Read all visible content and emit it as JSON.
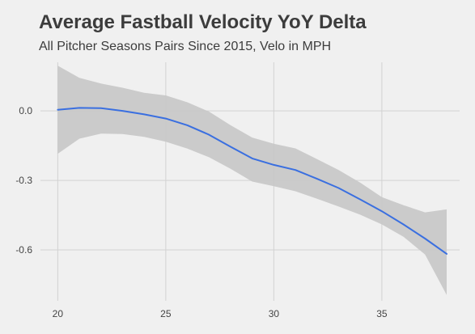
{
  "title": "Average Fastball Velocity YoY Delta",
  "subtitle": "All Pitcher Seasons Pairs Since 2015, Velo in MPH",
  "colors": {
    "background": "#f0f0f0",
    "grid": "#d2d2d2",
    "band": "#c8c8c8",
    "line": "#3a6fe0",
    "text": "#444444"
  },
  "chart_data": {
    "type": "line",
    "title": "Average Fastball Velocity YoY Delta",
    "subtitle": "All Pitcher Seasons Pairs Since 2015, Velo in MPH",
    "xlabel": "",
    "ylabel": "",
    "xlim": [
      19.2,
      38.6
    ],
    "ylim": [
      -0.82,
      0.21
    ],
    "x_ticks": [
      20,
      25,
      30,
      35
    ],
    "x_tick_labels": [
      "20",
      "25",
      "30",
      "35"
    ],
    "y_ticks": [
      0.0,
      -0.3,
      -0.6
    ],
    "y_tick_labels": [
      "0.0",
      "-0.3",
      "-0.6"
    ],
    "grid": true,
    "legend": "none",
    "series": [
      {
        "type": "line",
        "x": [
          20,
          21,
          22,
          23,
          24,
          25,
          26,
          27,
          28,
          29,
          30,
          31,
          32,
          33,
          34,
          35,
          36,
          37,
          38
        ],
        "y": [
          0.005,
          0.013,
          0.012,
          0.0,
          -0.015,
          -0.033,
          -0.062,
          -0.103,
          -0.155,
          -0.205,
          -0.233,
          -0.255,
          -0.293,
          -0.333,
          -0.382,
          -0.433,
          -0.49,
          -0.551,
          -0.617
        ]
      },
      {
        "type": "confidence_band",
        "x": [
          20,
          21,
          22,
          23,
          24,
          25,
          26,
          27,
          28,
          29,
          30,
          31,
          32,
          33,
          34,
          35,
          36,
          37,
          38
        ],
        "lower": [
          -0.185,
          -0.12,
          -0.098,
          -0.1,
          -0.112,
          -0.133,
          -0.163,
          -0.2,
          -0.25,
          -0.305,
          -0.325,
          -0.347,
          -0.379,
          -0.413,
          -0.448,
          -0.49,
          -0.543,
          -0.62,
          -0.795
        ],
        "upper": [
          0.195,
          0.143,
          0.118,
          0.1,
          0.078,
          0.067,
          0.037,
          -0.003,
          -0.062,
          -0.115,
          -0.142,
          -0.162,
          -0.208,
          -0.255,
          -0.31,
          -0.372,
          -0.407,
          -0.438,
          -0.425
        ]
      }
    ]
  }
}
